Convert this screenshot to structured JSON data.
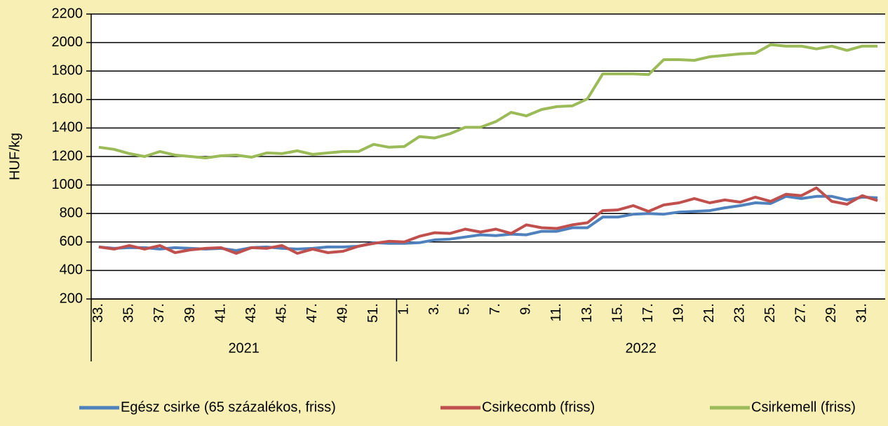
{
  "chart_data": {
    "type": "line",
    "y_label": "HUF/kg",
    "categories": [
      "33.",
      null,
      "35.",
      null,
      "37.",
      null,
      "39.",
      null,
      "41.",
      null,
      "43.",
      null,
      "45.",
      null,
      "47.",
      null,
      "49.",
      null,
      "51.",
      null,
      "1.",
      null,
      "3.",
      null,
      "5.",
      null,
      "7.",
      null,
      "9.",
      null,
      "11.",
      null,
      "13.",
      null,
      "15.",
      null,
      "17.",
      null,
      "19.",
      null,
      "21.",
      null,
      "23.",
      null,
      "25.",
      null,
      "27.",
      null,
      "29.",
      null,
      "31.",
      null
    ],
    "groups": [
      {
        "label": "2021",
        "count": 20
      },
      {
        "label": "2022",
        "count": 32
      }
    ],
    "series": [
      {
        "name": "Egész csirke (65 százalékos, friss)",
        "color": "#4f81bd",
        "values": [
          565,
          555,
          560,
          560,
          550,
          560,
          555,
          550,
          555,
          540,
          560,
          565,
          555,
          550,
          555,
          565,
          565,
          570,
          595,
          590,
          590,
          595,
          615,
          620,
          635,
          650,
          645,
          655,
          650,
          675,
          675,
          700,
          700,
          775,
          775,
          795,
          800,
          795,
          810,
          815,
          820,
          840,
          855,
          875,
          870,
          920,
          905,
          920,
          920,
          895,
          915,
          910
        ]
      },
      {
        "name": "Csirkecomb (friss)",
        "color": "#c0504d",
        "values": [
          565,
          550,
          575,
          550,
          575,
          525,
          545,
          555,
          560,
          520,
          560,
          555,
          575,
          520,
          550,
          525,
          535,
          570,
          590,
          605,
          600,
          640,
          665,
          660,
          690,
          670,
          690,
          660,
          720,
          700,
          695,
          720,
          735,
          820,
          825,
          855,
          815,
          860,
          875,
          905,
          875,
          895,
          880,
          915,
          885,
          935,
          925,
          980,
          885,
          865,
          925,
          890
        ]
      },
      {
        "name": "Csirkemell (friss)",
        "color": "#9bbb59",
        "values": [
          1265,
          1250,
          1220,
          1200,
          1235,
          1210,
          1200,
          1190,
          1205,
          1210,
          1195,
          1225,
          1220,
          1240,
          1215,
          1225,
          1235,
          1235,
          1285,
          1265,
          1270,
          1340,
          1330,
          1360,
          1405,
          1405,
          1445,
          1510,
          1485,
          1530,
          1550,
          1555,
          1605,
          1780,
          1780,
          1780,
          1775,
          1880,
          1880,
          1875,
          1900,
          1910,
          1920,
          1925,
          1985,
          1975,
          1975,
          1955,
          1975,
          1945,
          1975,
          1975
        ]
      }
    ],
    "ylim": [
      200,
      2200
    ],
    "yticks": [
      200,
      400,
      600,
      800,
      1000,
      1200,
      1400,
      1600,
      1800,
      2000,
      2200
    ],
    "grid": true,
    "legend": "bottom"
  }
}
